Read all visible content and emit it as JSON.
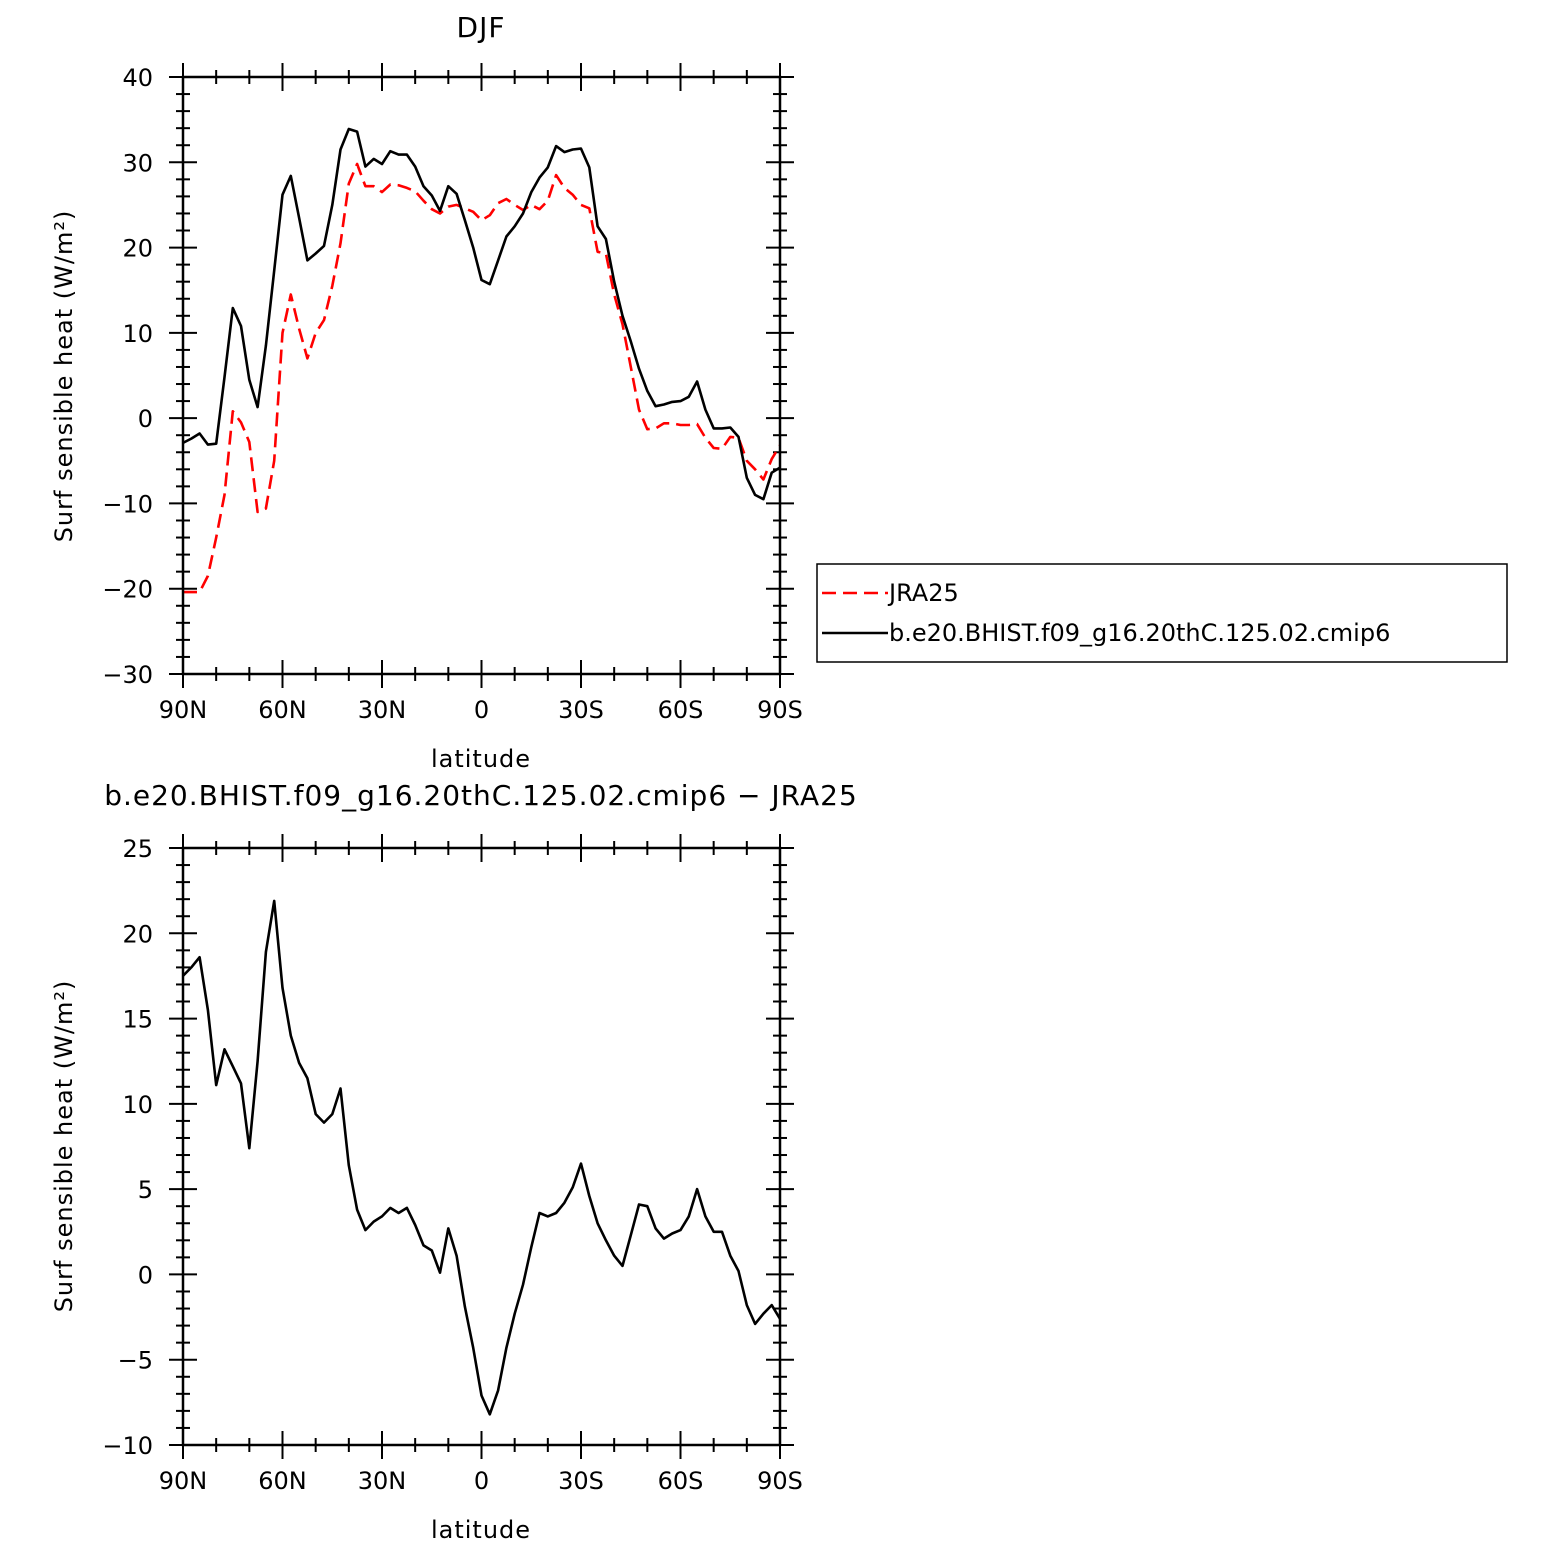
{
  "chart_data": [
    {
      "type": "line",
      "title": "DJF",
      "xlabel": "latitude",
      "ylabel": "Surf sensible heat (W/m²)",
      "xlim": [
        90,
        -90
      ],
      "ylim": [
        -30,
        40
      ],
      "yticks": [
        40,
        30,
        20,
        10,
        0,
        -10,
        -20,
        -30
      ],
      "ytick_labels": [
        "40",
        "30",
        "20",
        "10",
        "0",
        "−10",
        "−20",
        "−30"
      ],
      "xticks": [
        90,
        60,
        30,
        0,
        -30,
        -60,
        -90
      ],
      "xtick_labels": [
        "90N",
        "60N",
        "30N",
        "0",
        "30S",
        "60S",
        "90S"
      ],
      "legend": {
        "placement": "right"
      },
      "series": [
        {
          "name": "JRA25",
          "color": "#ff0000",
          "dash": true,
          "points": [
            [
              90,
              -20.4
            ],
            [
              87.5,
              -20.4
            ],
            [
              85,
              -20.4
            ],
            [
              82.5,
              -18.5
            ],
            [
              80,
              -14
            ],
            [
              77.5,
              -9
            ],
            [
              75,
              0.8
            ],
            [
              72.5,
              -0.5
            ],
            [
              70,
              -2.8
            ],
            [
              67.5,
              -11
            ],
            [
              65,
              -10.6
            ],
            [
              62.5,
              -5
            ],
            [
              60,
              10
            ],
            [
              57.5,
              14.5
            ],
            [
              55,
              10.5
            ],
            [
              52.5,
              7
            ],
            [
              50,
              10
            ],
            [
              47.5,
              11.5
            ],
            [
              45,
              15.5
            ],
            [
              42.5,
              20.5
            ],
            [
              40,
              27.5
            ],
            [
              37.5,
              29.8
            ],
            [
              35,
              27.2
            ],
            [
              32.5,
              27.2
            ],
            [
              30,
              26.5
            ],
            [
              27.5,
              27.4
            ],
            [
              25,
              27.3
            ],
            [
              22.5,
              27
            ],
            [
              20,
              26.6
            ],
            [
              17.5,
              25.5
            ],
            [
              15,
              24.5
            ],
            [
              12.5,
              24
            ],
            [
              10,
              24.8
            ],
            [
              7.5,
              25
            ],
            [
              5,
              24.6
            ],
            [
              2.5,
              24.2
            ],
            [
              0,
              23.2
            ],
            [
              -2.5,
              23.8
            ],
            [
              -5,
              25.2
            ],
            [
              -7.5,
              25.7
            ],
            [
              -10,
              25
            ],
            [
              -12.5,
              24.4
            ],
            [
              -15,
              25
            ],
            [
              -17.5,
              24.5
            ],
            [
              -20,
              25.5
            ],
            [
              -22.5,
              28.5
            ],
            [
              -25,
              27
            ],
            [
              -27.5,
              26.2
            ],
            [
              -30,
              25
            ],
            [
              -32.5,
              24.6
            ],
            [
              -35,
              19.5
            ],
            [
              -37.5,
              19.3
            ],
            [
              -40,
              14.5
            ],
            [
              -42.5,
              11
            ],
            [
              -45,
              6
            ],
            [
              -47.5,
              1
            ],
            [
              -50,
              -1.3
            ],
            [
              -52.5,
              -1.2
            ],
            [
              -55,
              -0.6
            ],
            [
              -57.5,
              -0.6
            ],
            [
              -60,
              -0.8
            ],
            [
              -62.5,
              -0.8
            ],
            [
              -65,
              -0.7
            ],
            [
              -67.5,
              -2.3
            ],
            [
              -70,
              -3.5
            ],
            [
              -72.5,
              -3.6
            ],
            [
              -75,
              -2.2
            ],
            [
              -77.5,
              -2.3
            ],
            [
              -80,
              -5
            ],
            [
              -82.5,
              -6
            ],
            [
              -85,
              -7.2
            ],
            [
              -87.5,
              -4.8
            ],
            [
              -90,
              -3.2
            ]
          ]
        },
        {
          "name": "b.e20.BHIST.f09_g16.20thC.125.02.cmip6",
          "color": "#000000",
          "dash": false,
          "points": [
            [
              90,
              -2.9
            ],
            [
              87.5,
              -2.4
            ],
            [
              85,
              -1.8
            ],
            [
              82.5,
              -3.1
            ],
            [
              80,
              -3
            ],
            [
              77.5,
              4.8
            ],
            [
              75,
              12.9
            ],
            [
              72.5,
              10.8
            ],
            [
              70,
              4.5
            ],
            [
              67.5,
              1.3
            ],
            [
              65,
              8.5
            ],
            [
              62.5,
              17.3
            ],
            [
              60,
              26.2
            ],
            [
              57.5,
              28.4
            ],
            [
              55,
              23.5
            ],
            [
              52.5,
              18.5
            ],
            [
              50,
              19.3
            ],
            [
              47.5,
              20.2
            ],
            [
              45,
              25
            ],
            [
              42.5,
              31.5
            ],
            [
              40,
              33.9
            ],
            [
              37.5,
              33.6
            ],
            [
              35,
              29.5
            ],
            [
              32.5,
              30.4
            ],
            [
              30,
              29.8
            ],
            [
              27.5,
              31.3
            ],
            [
              25,
              30.9
            ],
            [
              22.5,
              30.9
            ],
            [
              20,
              29.5
            ],
            [
              17.5,
              27.2
            ],
            [
              15,
              26.1
            ],
            [
              12.5,
              24.3
            ],
            [
              10,
              27.2
            ],
            [
              7.5,
              26.3
            ],
            [
              5,
              23.2
            ],
            [
              2.5,
              20
            ],
            [
              0,
              16.2
            ],
            [
              -2.5,
              15.7
            ],
            [
              -5,
              18.5
            ],
            [
              -7.5,
              21.3
            ],
            [
              -10,
              22.5
            ],
            [
              -12.5,
              24
            ],
            [
              -15,
              26.5
            ],
            [
              -17.5,
              28.2
            ],
            [
              -20,
              29.4
            ],
            [
              -22.5,
              31.9
            ],
            [
              -25,
              31.2
            ],
            [
              -27.5,
              31.5
            ],
            [
              -30,
              31.6
            ],
            [
              -32.5,
              29.4
            ],
            [
              -35,
              22.5
            ],
            [
              -37.5,
              21
            ],
            [
              -40,
              16
            ],
            [
              -42.5,
              12
            ],
            [
              -45,
              9
            ],
            [
              -47.5,
              5.8
            ],
            [
              -50,
              3.2
            ],
            [
              -52.5,
              1.4
            ],
            [
              -55,
              1.6
            ],
            [
              -57.5,
              1.9
            ],
            [
              -60,
              2
            ],
            [
              -62.5,
              2.5
            ],
            [
              -65,
              4.3
            ],
            [
              -67.5,
              1
            ],
            [
              -70,
              -1.2
            ],
            [
              -72.5,
              -1.2
            ],
            [
              -75,
              -1.1
            ],
            [
              -77.5,
              -2.2
            ],
            [
              -80,
              -7
            ],
            [
              -82.5,
              -9
            ],
            [
              -85,
              -9.5
            ],
            [
              -87.5,
              -6.4
            ],
            [
              -90,
              -5.8
            ]
          ]
        }
      ]
    },
    {
      "type": "line",
      "title": "b.e20.BHIST.f09_g16.20thC.125.02.cmip6 − JRA25",
      "xlabel": "latitude",
      "ylabel": "Surf sensible heat (W/m²)",
      "xlim": [
        90,
        -90
      ],
      "ylim": [
        -10,
        25
      ],
      "yticks": [
        25,
        20,
        15,
        10,
        5,
        0,
        -5,
        -10
      ],
      "ytick_labels": [
        "25",
        "20",
        "15",
        "10",
        "5",
        "0",
        "−5",
        "−10"
      ],
      "xticks": [
        90,
        60,
        30,
        0,
        -30,
        -60,
        -90
      ],
      "xtick_labels": [
        "90N",
        "60N",
        "30N",
        "0",
        "30S",
        "60S",
        "90S"
      ],
      "series": [
        {
          "color": "#000000",
          "dash": false,
          "points": [
            [
              90,
              17.5
            ],
            [
              87.5,
              18
            ],
            [
              85,
              18.6
            ],
            [
              82.5,
              15.5
            ],
            [
              80,
              11.1
            ],
            [
              77.5,
              13.2
            ],
            [
              75,
              12.2
            ],
            [
              72.5,
              11.2
            ],
            [
              70,
              7.4
            ],
            [
              67.5,
              12.5
            ],
            [
              65,
              18.9
            ],
            [
              62.5,
              21.9
            ],
            [
              60,
              16.8
            ],
            [
              57.5,
              14
            ],
            [
              55,
              12.4
            ],
            [
              52.5,
              11.5
            ],
            [
              50,
              9.4
            ],
            [
              47.5,
              8.9
            ],
            [
              45,
              9.4
            ],
            [
              42.5,
              10.9
            ],
            [
              40,
              6.4
            ],
            [
              37.5,
              3.8
            ],
            [
              35,
              2.6
            ],
            [
              32.5,
              3.1
            ],
            [
              30,
              3.4
            ],
            [
              27.5,
              3.9
            ],
            [
              25,
              3.6
            ],
            [
              22.5,
              3.9
            ],
            [
              20,
              2.9
            ],
            [
              17.5,
              1.7
            ],
            [
              15,
              1.4
            ],
            [
              12.5,
              0.1
            ],
            [
              10,
              2.7
            ],
            [
              7.5,
              1.1
            ],
            [
              5,
              -1.9
            ],
            [
              2.5,
              -4.3
            ],
            [
              0,
              -7.1
            ],
            [
              -2.5,
              -8.2
            ],
            [
              -5,
              -6.8
            ],
            [
              -7.5,
              -4.3
            ],
            [
              -10,
              -2.3
            ],
            [
              -12.5,
              -0.6
            ],
            [
              -15,
              1.6
            ],
            [
              -17.5,
              3.6
            ],
            [
              -20,
              3.4
            ],
            [
              -22.5,
              3.6
            ],
            [
              -25,
              4.2
            ],
            [
              -27.5,
              5.1
            ],
            [
              -30,
              6.5
            ],
            [
              -32.5,
              4.6
            ],
            [
              -35,
              3
            ],
            [
              -37.5,
              2
            ],
            [
              -40,
              1.1
            ],
            [
              -42.5,
              0.5
            ],
            [
              -45,
              2.3
            ],
            [
              -47.5,
              4.1
            ],
            [
              -50,
              4
            ],
            [
              -52.5,
              2.7
            ],
            [
              -55,
              2.1
            ],
            [
              -57.5,
              2.4
            ],
            [
              -60,
              2.6
            ],
            [
              -62.5,
              3.4
            ],
            [
              -65,
              5
            ],
            [
              -67.5,
              3.4
            ],
            [
              -70,
              2.5
            ],
            [
              -72.5,
              2.5
            ],
            [
              -75,
              1.1
            ],
            [
              -77.5,
              0.2
            ],
            [
              -80,
              -1.8
            ],
            [
              -82.5,
              -2.9
            ],
            [
              -85,
              -2.3
            ],
            [
              -87.5,
              -1.8
            ],
            [
              -90,
              -2.6
            ]
          ]
        }
      ]
    }
  ]
}
